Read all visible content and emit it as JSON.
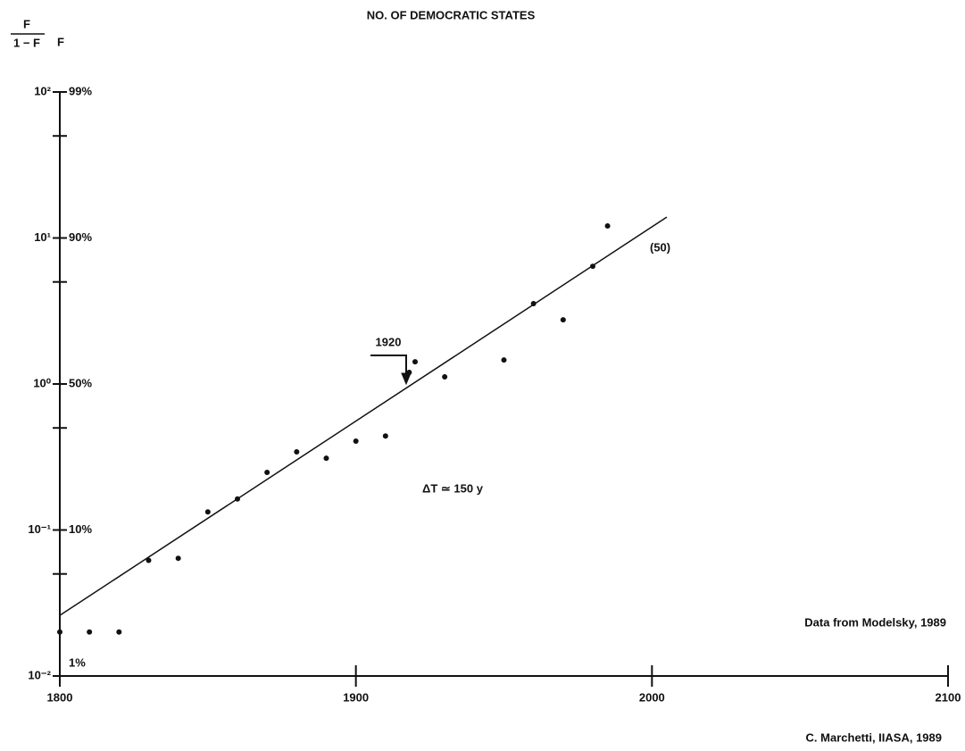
{
  "chart_data": {
    "type": "scatter",
    "title": "NO. OF DEMOCRATIC STATES",
    "y_label": {
      "numerator": "F",
      "denominator": "1 − F"
    },
    "y2_label": "F",
    "x": [
      1800,
      1810,
      1820,
      1830,
      1840,
      1850,
      1860,
      1870,
      1880,
      1890,
      1900,
      1910,
      1918,
      1920,
      1930,
      1950,
      1960,
      1970,
      1980,
      1985
    ],
    "values": [
      0.02,
      0.02,
      0.02,
      0.062,
      0.064,
      0.133,
      0.163,
      0.248,
      0.343,
      0.31,
      0.406,
      0.44,
      1.2,
      1.42,
      1.12,
      1.46,
      3.55,
      2.75,
      6.4,
      12.1
    ],
    "color": "#111111",
    "fit": {
      "x": [
        1800,
        2005
      ],
      "values": [
        0.026,
        13.9
      ]
    },
    "xlim": [
      1800,
      2100
    ],
    "xticks": [
      1800,
      1900,
      2000,
      2100
    ],
    "ylim": [
      0.01,
      100
    ],
    "log_scale_y": true,
    "yticks": [
      {
        "value": 0.01,
        "label": "10⁻²"
      },
      {
        "value": 0.1,
        "label": "10⁻¹"
      },
      {
        "value": 1,
        "label": "10⁰"
      },
      {
        "value": 10,
        "label": "10¹"
      },
      {
        "value": 100,
        "label": "10²"
      }
    ],
    "f_labels": [
      "1%",
      "10%",
      "50%",
      "90%",
      "99%"
    ],
    "yminor": [
      0.05,
      0.5,
      5,
      50
    ],
    "annotations": {
      "end_label": "(50)",
      "year_marker": "1920",
      "delta": "ΔT ≃ 150 y",
      "source": "Data from Modelsky, 1989",
      "credit": "C. Marchetti, IIASA, 1989"
    }
  }
}
